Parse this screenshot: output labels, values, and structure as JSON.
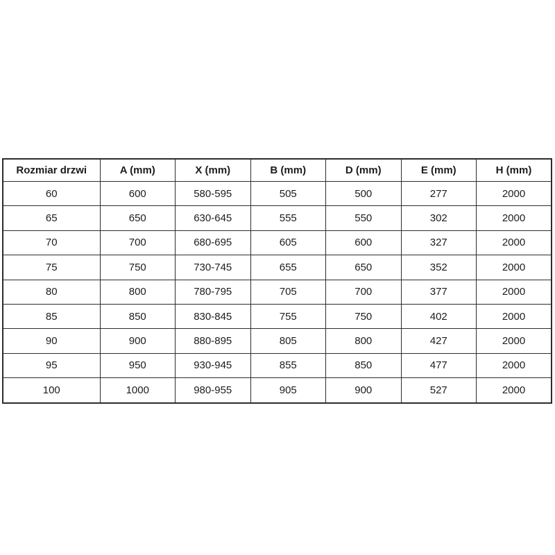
{
  "table": {
    "name": "door-size-spec-table",
    "columns": [
      "Rozmiar drzwi",
      "A (mm)",
      "X (mm)",
      "B (mm)",
      "D (mm)",
      "E (mm)",
      "H (mm)"
    ],
    "rows": [
      [
        "60",
        "600",
        "580-595",
        "505",
        "500",
        "277",
        "2000"
      ],
      [
        "65",
        "650",
        "630-645",
        "555",
        "550",
        "302",
        "2000"
      ],
      [
        "70",
        "700",
        "680-695",
        "605",
        "600",
        "327",
        "2000"
      ],
      [
        "75",
        "750",
        "730-745",
        "655",
        "650",
        "352",
        "2000"
      ],
      [
        "80",
        "800",
        "780-795",
        "705",
        "700",
        "377",
        "2000"
      ],
      [
        "85",
        "850",
        "830-845",
        "755",
        "750",
        "402",
        "2000"
      ],
      [
        "90",
        "900",
        "880-895",
        "805",
        "800",
        "427",
        "2000"
      ],
      [
        "95",
        "950",
        "930-945",
        "855",
        "850",
        "477",
        "2000"
      ],
      [
        "100",
        "1000",
        "980-955",
        "905",
        "900",
        "527",
        "2000"
      ]
    ]
  },
  "colors": {
    "background": "#ffffff",
    "border": "#2b2b2b",
    "text": "#1c1c1c"
  }
}
